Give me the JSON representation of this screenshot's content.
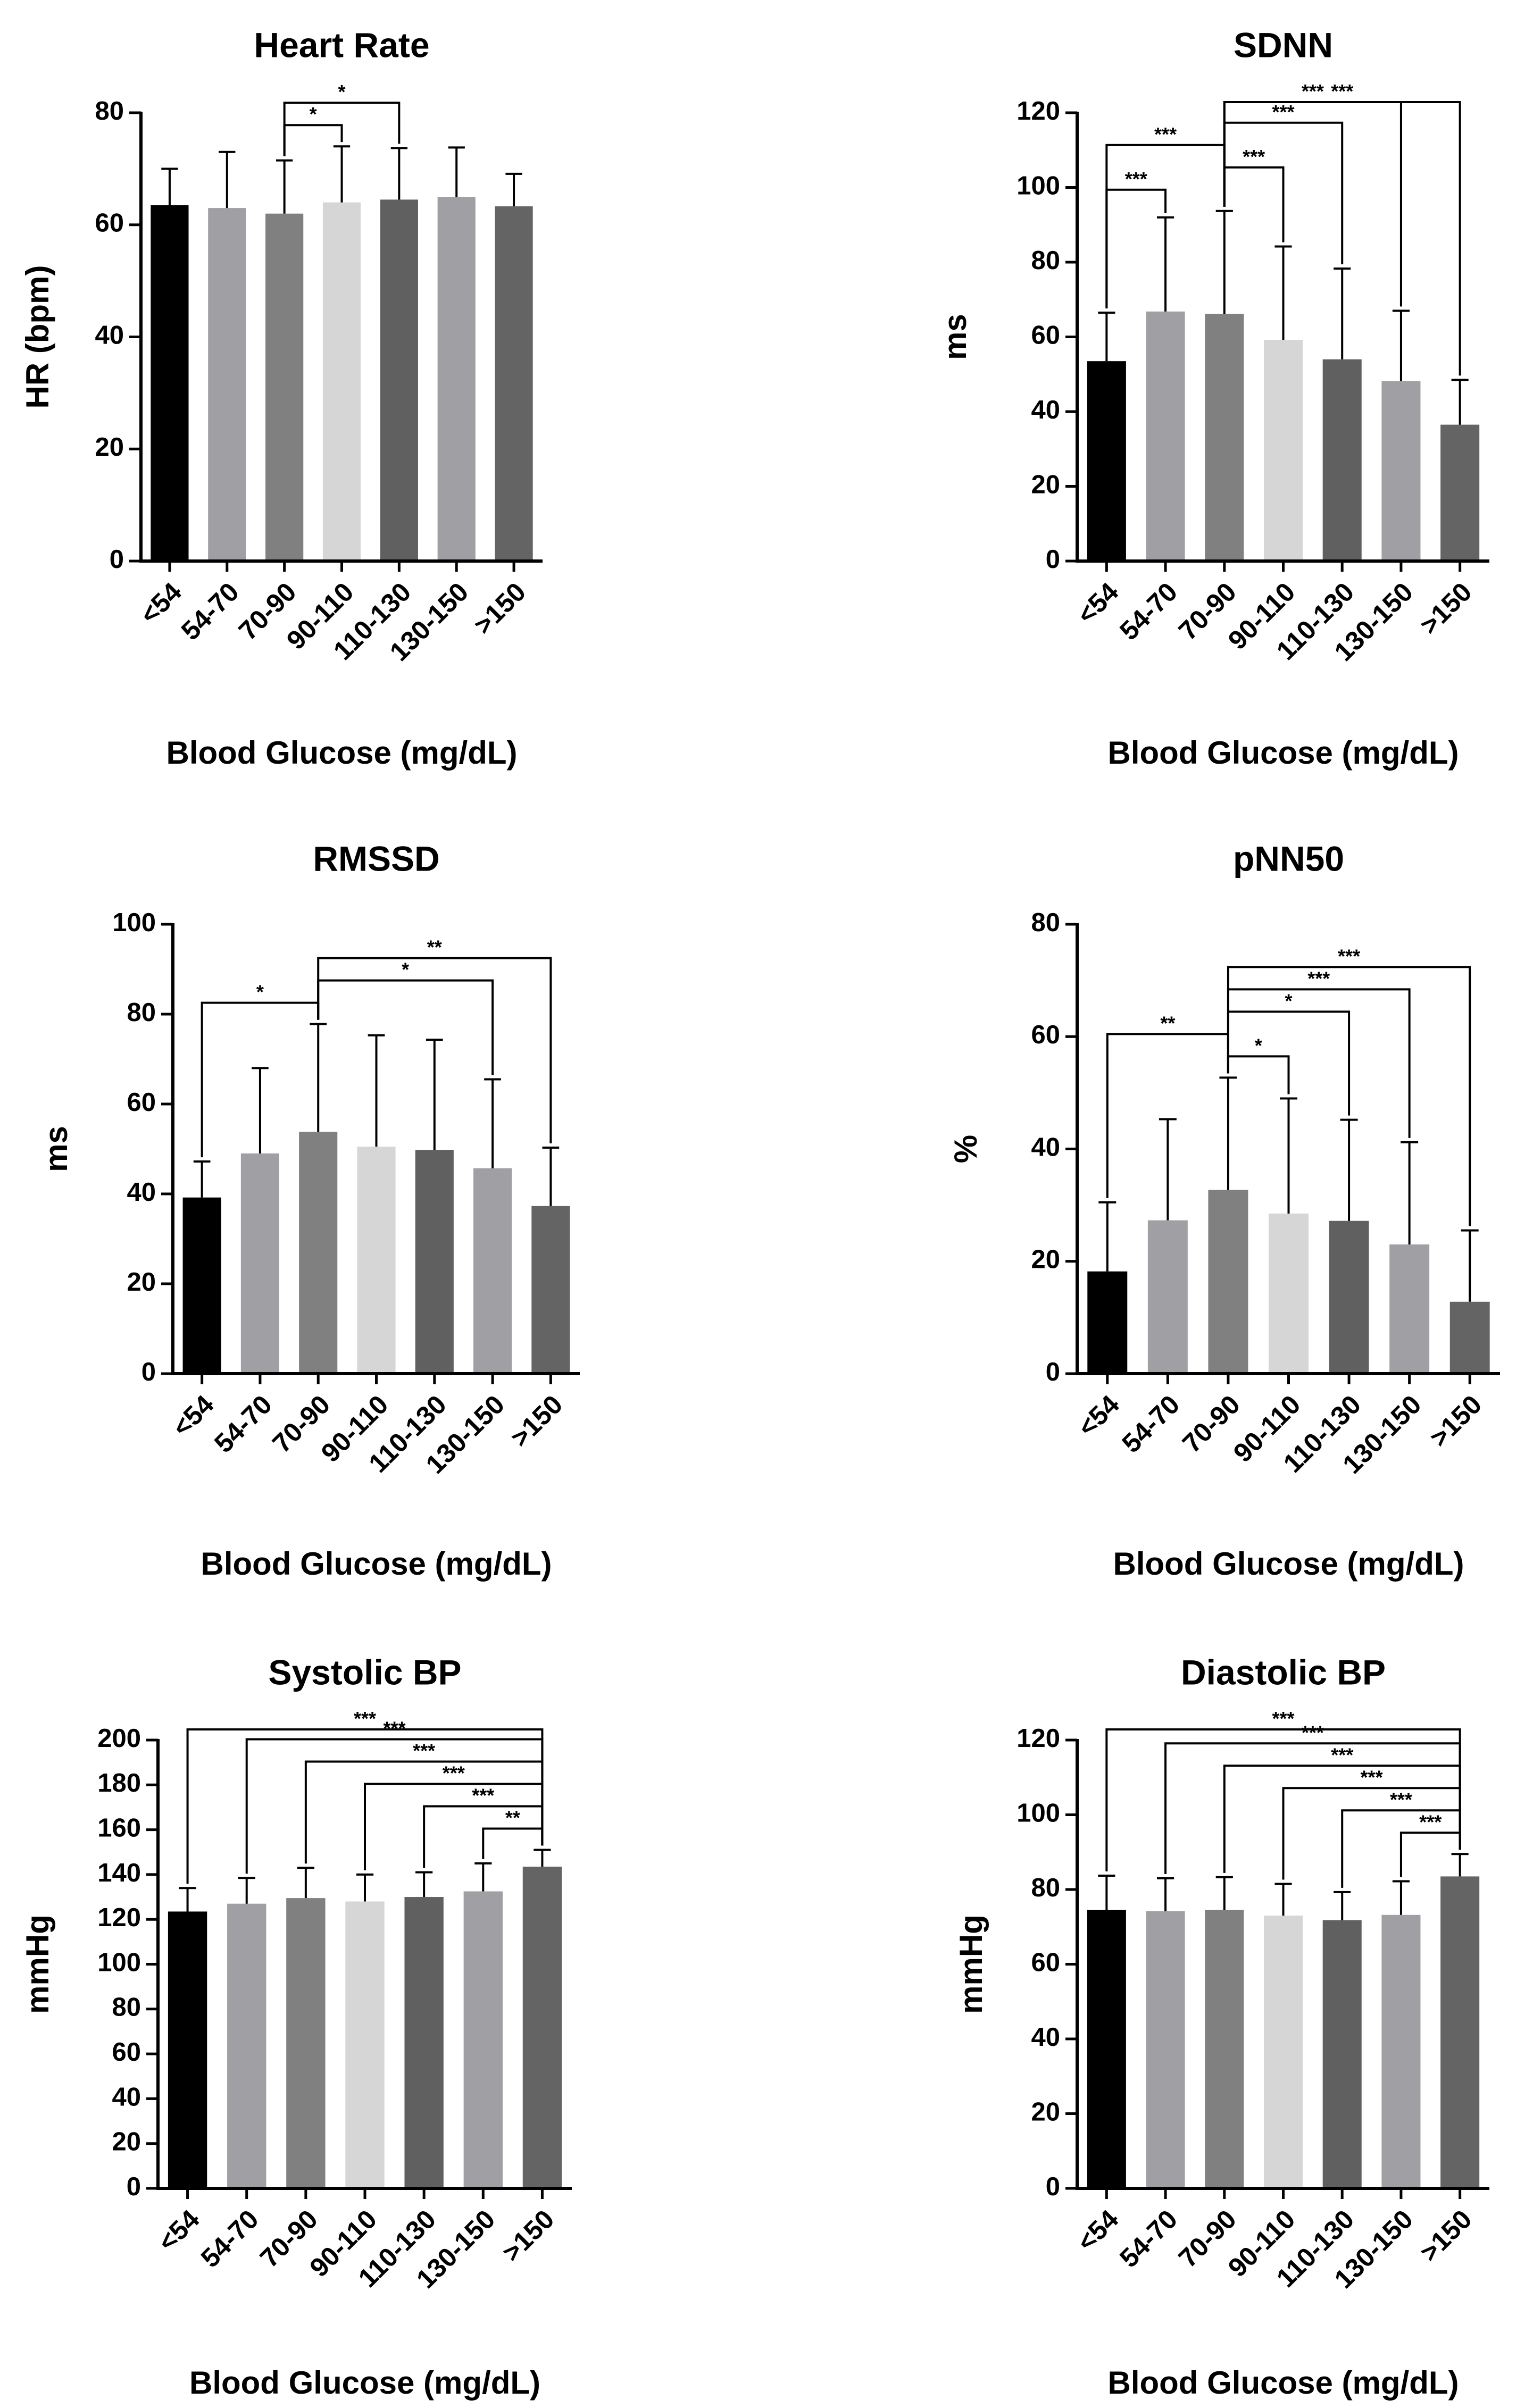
{
  "figure_xlabel": "Blood Glucose  (mg/dL)",
  "colors": [
    "#000000",
    "#a0a0a4",
    "#808080",
    "#d6d6d6",
    "#606060",
    "#a0a0a4",
    "#646464"
  ],
  "chart_data": [
    {
      "id": "hr",
      "type": "bar",
      "title": "Heart  Rate",
      "ylabel": "HR (bpm)",
      "xlabel": "Blood Glucose  (mg/dL)",
      "categories": [
        "<54",
        "54-70",
        "70-90",
        "90-110",
        "110-130",
        "130-150",
        ">150"
      ],
      "values": [
        63.5,
        63,
        62,
        64,
        64.5,
        65,
        63.3
      ],
      "errors": [
        6.5,
        10,
        9.5,
        10,
        9.2,
        8.8,
        5.8
      ],
      "ylim": [
        0,
        80
      ],
      "yticks": [
        0,
        20,
        40,
        60,
        80
      ],
      "significance": [
        {
          "from": 2,
          "to": 3,
          "label": "*"
        },
        {
          "from": 2,
          "to": 4,
          "label": "*"
        }
      ]
    },
    {
      "id": "sdnn",
      "type": "bar",
      "title": "SDNN",
      "ylabel": "ms",
      "xlabel": "Blood Glucose  (mg/dL)",
      "categories": [
        "<54",
        "54-70",
        "70-90",
        "90-110",
        "110-130",
        "130-150",
        ">150"
      ],
      "values": [
        53.5,
        66.8,
        66.2,
        59.2,
        54,
        48.2,
        36.5
      ],
      "errors": [
        13,
        25.2,
        27.5,
        25,
        24.3,
        18.8,
        12
      ],
      "ylim": [
        0,
        120
      ],
      "yticks": [
        0,
        20,
        40,
        60,
        80,
        100,
        120
      ],
      "significance": [
        {
          "from": 0,
          "to": 1,
          "label": "***"
        },
        {
          "from": 0,
          "to": 2,
          "label": "***"
        },
        {
          "from": 2,
          "to": 3,
          "label": "***"
        },
        {
          "from": 2,
          "to": 4,
          "label": "***"
        },
        {
          "from": 2,
          "to": 5,
          "label": "***"
        },
        {
          "from": 2,
          "to": 6,
          "label": "***"
        }
      ]
    },
    {
      "id": "rmssd",
      "type": "bar",
      "title": "RMSSD",
      "ylabel": "ms",
      "xlabel": "Blood Glucose  (mg/dL)",
      "categories": [
        "<54",
        "54-70",
        "70-90",
        "90-110",
        "110-130",
        "130-150",
        ">150"
      ],
      "values": [
        39.2,
        49,
        53.8,
        50.5,
        49.8,
        45.7,
        37.3
      ],
      "errors": [
        8,
        19,
        24,
        24.8,
        24.5,
        19.8,
        13
      ],
      "ylim": [
        0,
        100
      ],
      "yticks": [
        0,
        20,
        40,
        60,
        80,
        100
      ],
      "significance": [
        {
          "from": 0,
          "to": 2,
          "label": "*"
        },
        {
          "from": 2,
          "to": 5,
          "label": "*"
        },
        {
          "from": 2,
          "to": 6,
          "label": "**"
        }
      ]
    },
    {
      "id": "pnn50",
      "type": "bar",
      "title": "pNN50",
      "ylabel": "%",
      "xlabel": "Blood Glucose  (mg/dL)",
      "categories": [
        "<54",
        "54-70",
        "70-90",
        "90-110",
        "110-130",
        "130-150",
        ">150"
      ],
      "values": [
        18.2,
        27.3,
        32.7,
        28.5,
        27.2,
        23,
        12.8
      ],
      "errors": [
        12.3,
        18,
        20,
        20.5,
        18,
        18.2,
        12.7
      ],
      "ylim": [
        0,
        80
      ],
      "yticks": [
        0,
        20,
        40,
        60,
        80
      ],
      "significance": [
        {
          "from": 0,
          "to": 2,
          "label": "**"
        },
        {
          "from": 2,
          "to": 3,
          "label": "*"
        },
        {
          "from": 2,
          "to": 4,
          "label": "*"
        },
        {
          "from": 2,
          "to": 5,
          "label": "***"
        },
        {
          "from": 2,
          "to": 6,
          "label": "***"
        }
      ]
    },
    {
      "id": "sbp",
      "type": "bar",
      "title": "Systolic  BP",
      "ylabel": "mmHg",
      "xlabel": "Blood Glucose  (mg/dL)",
      "categories": [
        "<54",
        "54-70",
        "70-90",
        "90-110",
        "110-130",
        "130-150",
        ">150"
      ],
      "values": [
        123.5,
        127,
        129.5,
        128,
        130,
        132.5,
        143.5
      ],
      "errors": [
        10.5,
        11.5,
        13.5,
        12,
        11,
        12.5,
        7.5
      ],
      "ylim": [
        0,
        200
      ],
      "yticks": [
        0,
        20,
        40,
        60,
        80,
        100,
        120,
        140,
        160,
        180,
        200
      ],
      "significance": [
        {
          "from": 0,
          "to": 6,
          "label": "***"
        },
        {
          "from": 1,
          "to": 6,
          "label": "***"
        },
        {
          "from": 2,
          "to": 6,
          "label": "***"
        },
        {
          "from": 3,
          "to": 6,
          "label": "***"
        },
        {
          "from": 4,
          "to": 6,
          "label": "***"
        },
        {
          "from": 5,
          "to": 6,
          "label": "**"
        }
      ]
    },
    {
      "id": "dbp",
      "type": "bar",
      "title": "Diastolic  BP",
      "ylabel": "mmHg",
      "xlabel": "Blood Glucose  (mg/dL)",
      "categories": [
        "<54",
        "54-70",
        "70-90",
        "90-110",
        "110-130",
        "130-150",
        ">150"
      ],
      "values": [
        74.5,
        74.2,
        74.5,
        73,
        71.8,
        73.2,
        83.5
      ],
      "errors": [
        9.2,
        8.8,
        8.8,
        8.5,
        7.5,
        9,
        6
      ],
      "ylim": [
        0,
        120
      ],
      "yticks": [
        0,
        20,
        40,
        60,
        80,
        100,
        120
      ],
      "significance": [
        {
          "from": 0,
          "to": 6,
          "label": "***"
        },
        {
          "from": 1,
          "to": 6,
          "label": "***"
        },
        {
          "from": 2,
          "to": 6,
          "label": "***"
        },
        {
          "from": 3,
          "to": 6,
          "label": "***"
        },
        {
          "from": 4,
          "to": 6,
          "label": "***"
        },
        {
          "from": 5,
          "to": 6,
          "label": "***"
        }
      ]
    }
  ]
}
